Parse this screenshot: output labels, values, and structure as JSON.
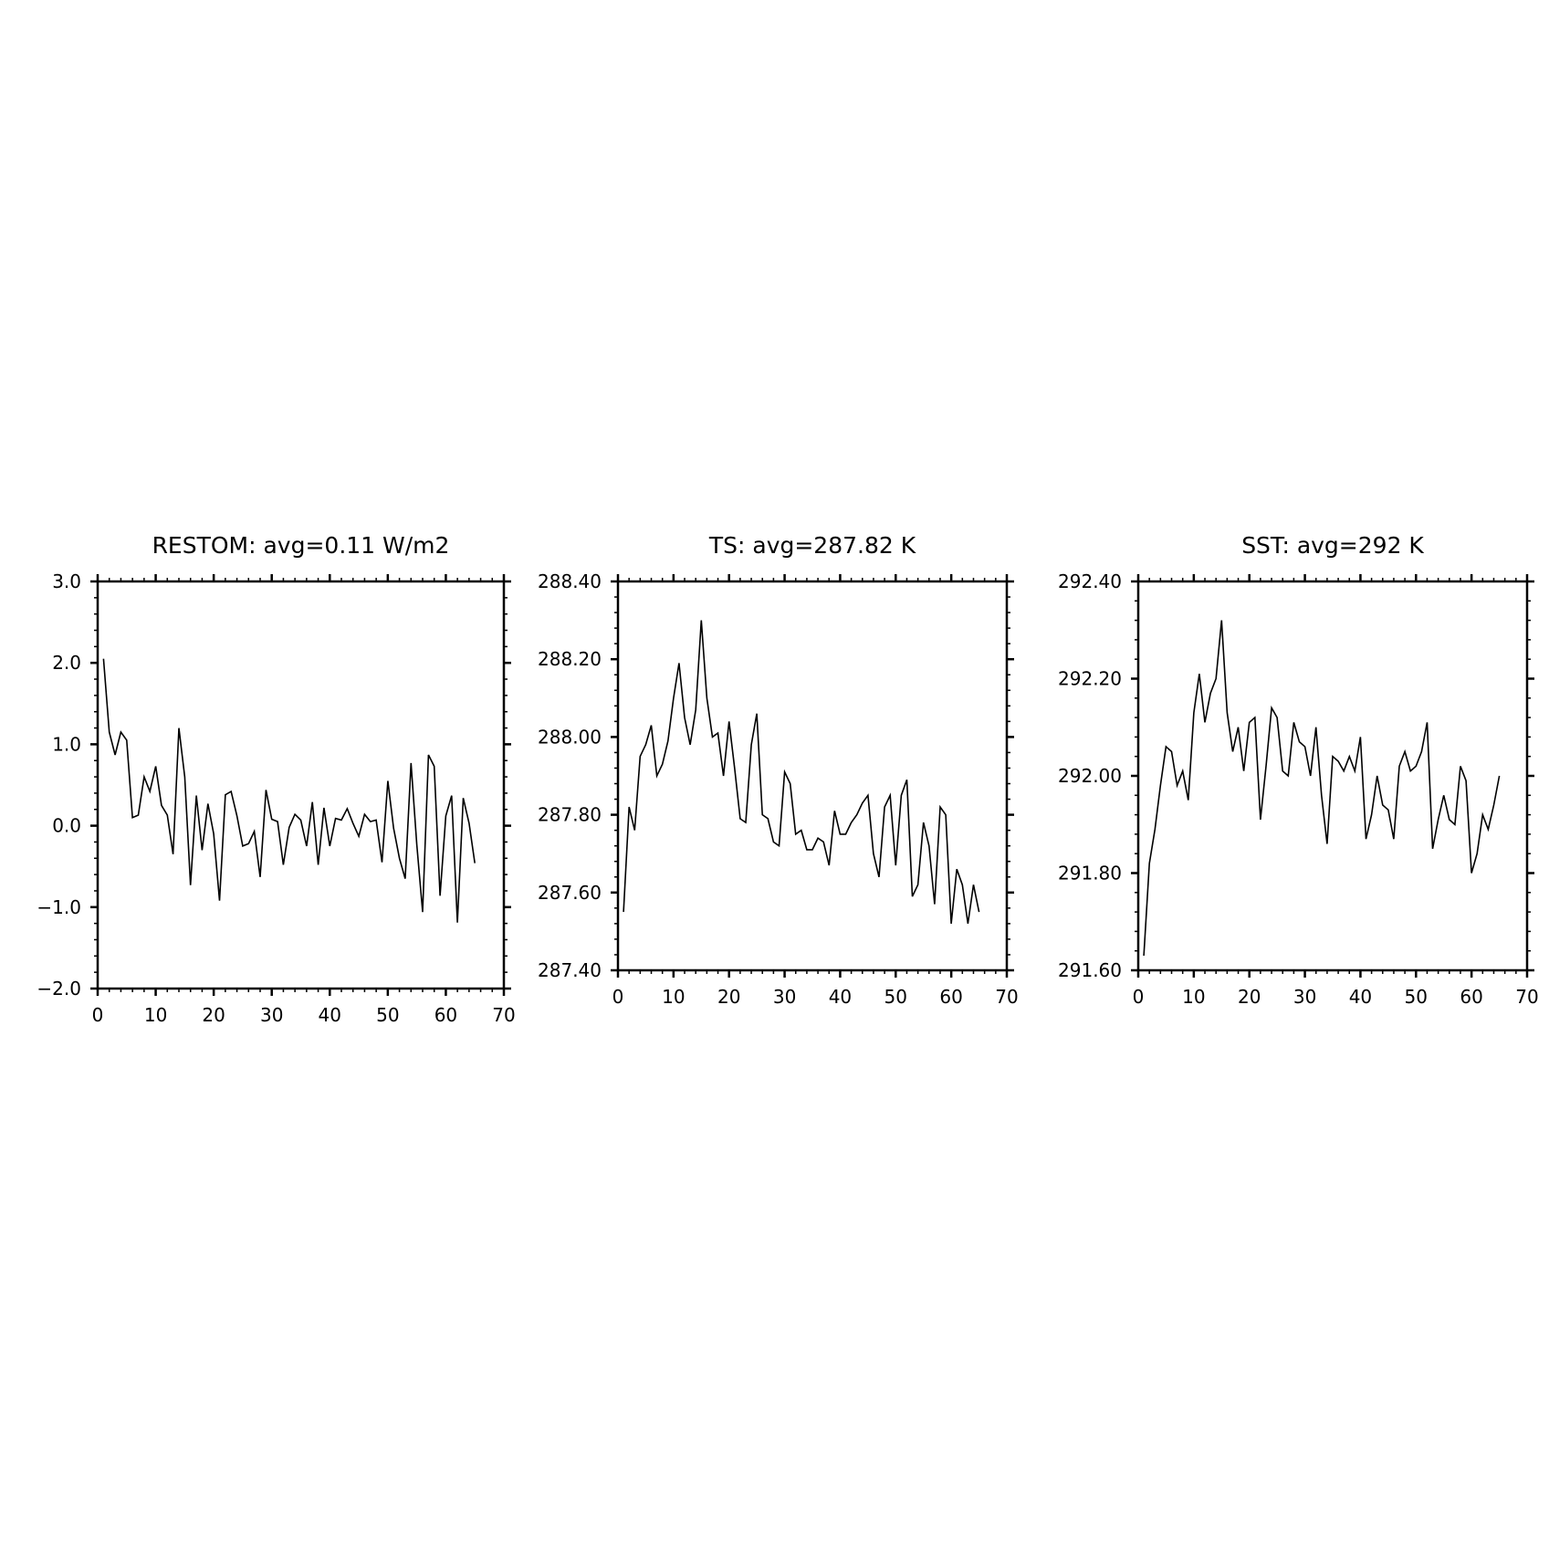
{
  "chart_data": [
    {
      "type": "line",
      "title": "RESTOM: avg=0.11 W/m2",
      "xlabel": "",
      "ylabel": "",
      "xlim": [
        0,
        70
      ],
      "ylim": [
        -2.0,
        3.0
      ],
      "xticks": [
        0,
        10,
        20,
        30,
        40,
        50,
        60,
        70
      ],
      "xtick_labels": [
        "0",
        "10",
        "20",
        "30",
        "40",
        "50",
        "60",
        "70"
      ],
      "yticks": [
        -2.0,
        -1.0,
        0.0,
        1.0,
        2.0,
        3.0
      ],
      "ytick_labels": [
        "−2.0",
        "−1.0",
        "0.0",
        "1.0",
        "2.0",
        "3.0"
      ],
      "grid": false,
      "line_color": "#000000",
      "series": [
        {
          "x": [
            1,
            2,
            3,
            4,
            5,
            6,
            7,
            8,
            9,
            10,
            11,
            12,
            13,
            14,
            15,
            16,
            17,
            18,
            19,
            20,
            21,
            22,
            23,
            24,
            25,
            26,
            27,
            28,
            29,
            30,
            31,
            32,
            33,
            34,
            35,
            36,
            37,
            38,
            39,
            40,
            41,
            42,
            43,
            44,
            45,
            46,
            47,
            48,
            49,
            50,
            51,
            52,
            53,
            54,
            55,
            56,
            57,
            58,
            59,
            60,
            61,
            62,
            63,
            64,
            65
          ],
          "y": [
            2.05,
            1.15,
            0.87,
            1.15,
            1.05,
            0.1,
            0.13,
            0.6,
            0.42,
            0.73,
            0.25,
            0.13,
            -0.35,
            1.2,
            0.6,
            -0.73,
            0.37,
            -0.3,
            0.27,
            -0.1,
            -0.92,
            0.38,
            0.42,
            0.12,
            -0.25,
            -0.22,
            -0.07,
            -0.63,
            0.44,
            0.08,
            0.05,
            -0.48,
            -0.02,
            0.14,
            0.07,
            -0.25,
            0.29,
            -0.48,
            0.22,
            -0.25,
            0.09,
            0.07,
            0.21,
            0.03,
            -0.13,
            0.14,
            0.05,
            0.07,
            -0.45,
            0.55,
            -0.03,
            -0.4,
            -0.65,
            0.77,
            -0.23,
            -1.06,
            0.87,
            0.73,
            -0.86,
            0.12,
            0.37,
            -1.19,
            0.34,
            0.03,
            -0.46
          ]
        }
      ]
    },
    {
      "type": "line",
      "title": "TS: avg=287.82 K",
      "xlabel": "",
      "ylabel": "",
      "xlim": [
        0,
        70
      ],
      "ylim": [
        287.4,
        288.4
      ],
      "xticks": [
        0,
        10,
        20,
        30,
        40,
        50,
        60,
        70
      ],
      "xtick_labels": [
        "0",
        "10",
        "20",
        "30",
        "40",
        "50",
        "60",
        "70"
      ],
      "yticks": [
        287.4,
        287.6,
        287.8,
        288.0,
        288.2,
        288.4
      ],
      "ytick_labels": [
        "287.40",
        "287.60",
        "287.80",
        "288.00",
        "288.20",
        "288.40"
      ],
      "grid": false,
      "line_color": "#000000",
      "series": [
        {
          "x": [
            1,
            2,
            3,
            4,
            5,
            6,
            7,
            8,
            9,
            10,
            11,
            12,
            13,
            14,
            15,
            16,
            17,
            18,
            19,
            20,
            21,
            22,
            23,
            24,
            25,
            26,
            27,
            28,
            29,
            30,
            31,
            32,
            33,
            34,
            35,
            36,
            37,
            38,
            39,
            40,
            41,
            42,
            43,
            44,
            45,
            46,
            47,
            48,
            49,
            50,
            51,
            52,
            53,
            54,
            55,
            56,
            57,
            58,
            59,
            60,
            61,
            62,
            63,
            64,
            65
          ],
          "y": [
            287.55,
            287.82,
            287.76,
            287.95,
            287.98,
            288.03,
            287.9,
            287.93,
            287.99,
            288.1,
            288.19,
            288.05,
            287.98,
            288.07,
            288.3,
            288.1,
            288.0,
            288.01,
            287.9,
            288.04,
            287.92,
            287.79,
            287.78,
            287.98,
            288.06,
            287.8,
            287.79,
            287.73,
            287.72,
            287.91,
            287.88,
            287.75,
            287.76,
            287.71,
            287.71,
            287.74,
            287.73,
            287.67,
            287.81,
            287.75,
            287.75,
            287.78,
            287.8,
            287.83,
            287.85,
            287.7,
            287.64,
            287.82,
            287.85,
            287.67,
            287.85,
            287.89,
            287.59,
            287.62,
            287.78,
            287.72,
            287.57,
            287.82,
            287.8,
            287.52,
            287.66,
            287.62,
            287.52,
            287.62,
            287.55
          ]
        }
      ]
    },
    {
      "type": "line",
      "title": "SST: avg=292 K",
      "xlabel": "",
      "ylabel": "",
      "xlim": [
        0,
        70
      ],
      "ylim": [
        291.6,
        292.4
      ],
      "xticks": [
        0,
        10,
        20,
        30,
        40,
        50,
        60,
        70
      ],
      "xtick_labels": [
        "0",
        "10",
        "20",
        "30",
        "40",
        "50",
        "60",
        "70"
      ],
      "yticks": [
        291.6,
        291.8,
        292.0,
        292.2,
        292.4
      ],
      "ytick_labels": [
        "291.60",
        "291.80",
        "292.00",
        "292.20",
        "292.40"
      ],
      "grid": false,
      "line_color": "#000000",
      "series": [
        {
          "x": [
            1,
            2,
            3,
            4,
            5,
            6,
            7,
            8,
            9,
            10,
            11,
            12,
            13,
            14,
            15,
            16,
            17,
            18,
            19,
            20,
            21,
            22,
            23,
            24,
            25,
            26,
            27,
            28,
            29,
            30,
            31,
            32,
            33,
            34,
            35,
            36,
            37,
            38,
            39,
            40,
            41,
            42,
            43,
            44,
            45,
            46,
            47,
            48,
            49,
            50,
            51,
            52,
            53,
            54,
            55,
            56,
            57,
            58,
            59,
            60,
            61,
            62,
            63,
            64,
            65
          ],
          "y": [
            291.63,
            291.82,
            291.89,
            291.98,
            292.06,
            292.05,
            291.98,
            292.01,
            291.95,
            292.13,
            292.21,
            292.11,
            292.17,
            292.2,
            292.32,
            292.13,
            292.05,
            292.1,
            292.01,
            292.11,
            292.12,
            291.91,
            292.02,
            292.14,
            292.12,
            292.01,
            292.0,
            292.11,
            292.07,
            292.06,
            292.0,
            292.1,
            291.96,
            291.86,
            292.04,
            292.03,
            292.01,
            292.04,
            292.01,
            292.08,
            291.87,
            291.92,
            292.0,
            291.94,
            291.93,
            291.87,
            292.02,
            292.05,
            292.01,
            292.02,
            292.05,
            292.11,
            291.85,
            291.91,
            291.96,
            291.91,
            291.9,
            292.02,
            291.99,
            291.8,
            291.84,
            291.92,
            291.89,
            291.94,
            292.0
          ]
        }
      ]
    }
  ]
}
